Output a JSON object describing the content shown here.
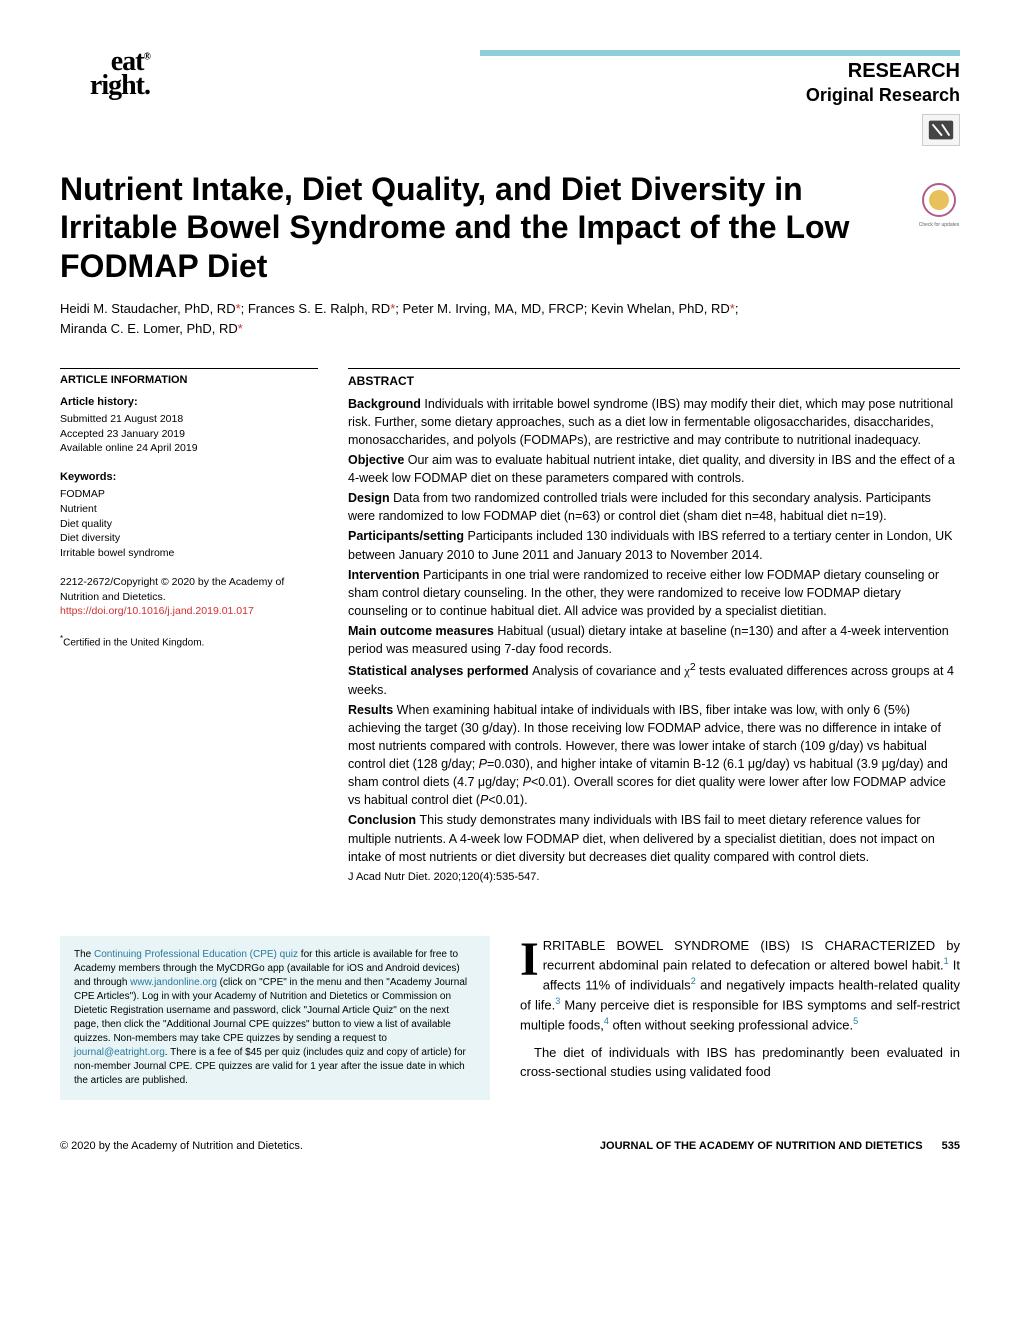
{
  "header": {
    "logo_text_top": "eat",
    "logo_text_bottom": "right.",
    "trademark": "®",
    "research_label": "RESEARCH",
    "subsection_label": "Original Research",
    "header_bar_color": "#8dcfd8"
  },
  "title": "Nutrient Intake, Diet Quality, and Diet Diversity in Irritable Bowel Syndrome and the Impact of the Low FODMAP Diet",
  "authors_line1": "Heidi M. Staudacher, PhD, RD*; Frances S. E. Ralph, RD*; Peter M. Irving, MA, MD, FRCP; Kevin Whelan, PhD, RD*;",
  "authors_line2": "Miranda C. E. Lomer, PhD, RD*",
  "article_info": {
    "heading": "ARTICLE INFORMATION",
    "history_heading": "Article history:",
    "submitted": "Submitted 21 August 2018",
    "accepted": "Accepted 23 January 2019",
    "online": "Available online 24 April 2019",
    "keywords_heading": "Keywords:",
    "keywords": [
      "FODMAP",
      "Nutrient",
      "Diet quality",
      "Diet diversity",
      "Irritable bowel syndrome"
    ],
    "copyright": "2212-2672/Copyright © 2020 by the Academy of Nutrition and Dietetics.",
    "doi": "https://doi.org/10.1016/j.jand.2019.01.017",
    "footnote": "*Certified in the United Kingdom."
  },
  "abstract": {
    "heading": "ABSTRACT",
    "sections": [
      {
        "label": "Background",
        "text": "Individuals with irritable bowel syndrome (IBS) may modify their diet, which may pose nutritional risk. Further, some dietary approaches, such as a diet low in fermentable oligosaccharides, disaccharides, monosaccharides, and polyols (FODMAPs), are restrictive and may contribute to nutritional inadequacy."
      },
      {
        "label": "Objective",
        "text": "Our aim was to evaluate habitual nutrient intake, diet quality, and diversity in IBS and the effect of a 4-week low FODMAP diet on these parameters compared with controls."
      },
      {
        "label": "Design",
        "text": "Data from two randomized controlled trials were included for this secondary analysis. Participants were randomized to low FODMAP diet (n=63) or control diet (sham diet n=48, habitual diet n=19)."
      },
      {
        "label": "Participants/setting",
        "text": "Participants included 130 individuals with IBS referred to a tertiary center in London, UK between January 2010 to June 2011 and January 2013 to November 2014."
      },
      {
        "label": "Intervention",
        "text": "Participants in one trial were randomized to receive either low FODMAP dietary counseling or sham control dietary counseling. In the other, they were randomized to receive low FODMAP dietary counseling or to continue habitual diet. All advice was provided by a specialist dietitian."
      },
      {
        "label": "Main outcome measures",
        "text": "Habitual (usual) dietary intake at baseline (n=130) and after a 4-week intervention period was measured using 7-day food records."
      },
      {
        "label": "Statistical analyses performed",
        "text": "Analysis of covariance and χ² tests evaluated differences across groups at 4 weeks."
      },
      {
        "label": "Results",
        "text": "When examining habitual intake of individuals with IBS, fiber intake was low, with only 6 (5%) achieving the target (30 g/day). In those receiving low FODMAP advice, there was no difference in intake of most nutrients compared with controls. However, there was lower intake of starch (109 g/day) vs habitual control diet (128 g/day; P=0.030), and higher intake of vitamin B-12 (6.1 μg/day) vs habitual (3.9 μg/day) and sham control diets (4.7 μg/day; P<0.01). Overall scores for diet quality were lower after low FODMAP advice vs habitual control diet (P<0.01)."
      },
      {
        "label": "Conclusion",
        "text": "This study demonstrates many individuals with IBS fail to meet dietary reference values for multiple nutrients. A 4-week low FODMAP diet, when delivered by a specialist dietitian, does not impact on intake of most nutrients or diet diversity but decreases diet quality compared with control diets."
      }
    ],
    "citation": "J Acad Nutr Diet. 2020;120(4):535-547."
  },
  "cpe_box": {
    "text_parts": [
      "The ",
      "Continuing Professional Education (CPE) quiz",
      " for this article is available for free to Academy members through the MyCDRGo app (available for iOS and Android devices) and through ",
      "www.jandonline.org",
      " (click on \"CPE\" in the menu and then \"Academy Journal CPE Articles\"). Log in with your Academy of Nutrition and Dietetics or Commission on Dietetic Registration username and password, click \"Journal Article Quiz\" on the next page, then click the \"Additional Journal CPE quizzes\" button to view a list of available quizzes. Non-members may take CPE quizzes by sending a request to ",
      "journal@eatright.org",
      ". There is a fee of $45 per quiz (includes quiz and copy of article) for non-member Journal CPE. CPE quizzes are valid for 1 year after the issue date in which the articles are published."
    ]
  },
  "body": {
    "dropcap": "I",
    "para1_parts": [
      "RRITABLE BOWEL SYNDROME (IBS) IS CHARACTERIZED by recurrent abdominal pain related to defecation or altered bowel habit.",
      "1",
      " It affects 11% of individuals",
      "2",
      " and negatively impacts health-related quality of life.",
      "3",
      " Many perceive diet is responsible for IBS symptoms and self-restrict multiple foods,",
      "4",
      " often without seeking professional advice.",
      "5"
    ],
    "para2": "The diet of individuals with IBS has predominantly been evaluated in cross-sectional studies using validated food"
  },
  "footer": {
    "left": "© 2020 by the Academy of Nutrition and Dietetics.",
    "right": "JOURNAL OF THE ACADEMY OF NUTRITION AND DIETETICS",
    "page": "535"
  },
  "colors": {
    "link_red": "#d32f2f",
    "link_blue": "#2a7a9c",
    "box_bg": "#e8f4f6",
    "header_bar": "#8dcfd8"
  }
}
